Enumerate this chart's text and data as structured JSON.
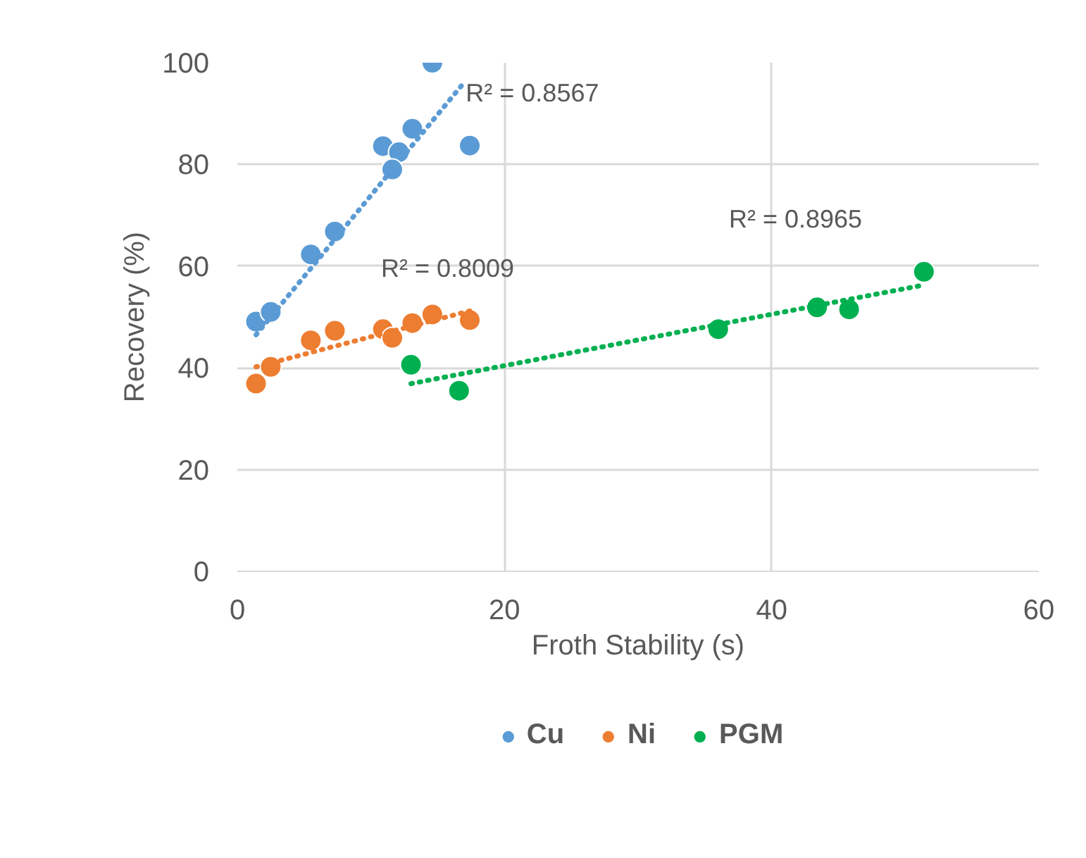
{
  "chart_data": {
    "type": "scatter",
    "xlabel": "Froth Stability (s)",
    "ylabel": "Recovery (%)",
    "xlim": [
      0,
      60
    ],
    "ylim": [
      0,
      100
    ],
    "xticks": [
      0,
      20,
      40,
      60
    ],
    "yticks": [
      0,
      20,
      40,
      60,
      80,
      100
    ],
    "grid": true,
    "legend": "bottom",
    "marker": "circle",
    "series": [
      {
        "name": "Cu",
        "color": "#5b9bd5",
        "x": [
          1.4,
          2.5,
          5.5,
          7.3,
          10.9,
          12.1,
          11.6,
          13.1,
          14.6,
          17.4
        ],
        "values": [
          49.1,
          51.0,
          62.3,
          66.8,
          83.6,
          82.4,
          79.0,
          87.0,
          100,
          83.7
        ]
      },
      {
        "name": "Ni",
        "color": "#ed7d31",
        "x": [
          1.4,
          2.5,
          5.5,
          7.3,
          10.9,
          11.6,
          13.1,
          14.6,
          17.4
        ],
        "values": [
          36.9,
          40.2,
          45.4,
          47.3,
          47.6,
          45.9,
          48.8,
          50.5,
          49.4
        ]
      },
      {
        "name": "PGM",
        "color": "#00b050",
        "x": [
          13.0,
          16.6,
          36.0,
          43.4,
          45.8,
          51.4
        ],
        "values": [
          40.6,
          35.5,
          47.6,
          51.9,
          51.5,
          58.9
        ]
      },
      {
        "color": "#5b9bd5",
        "type": "line",
        "line_style": "dotted",
        "marker": "none",
        "x": [
          1.4,
          17.1
        ],
        "values": [
          46.5,
          96.5
        ]
      },
      {
        "color": "#ed7d31",
        "type": "line",
        "line_style": "dotted",
        "marker": "none",
        "x": [
          1.4,
          17.4
        ],
        "values": [
          40.2,
          51.2
        ]
      },
      {
        "color": "#00b050",
        "type": "line",
        "line_style": "dotted",
        "marker": "none",
        "x": [
          13.0,
          51.4
        ],
        "values": [
          36.9,
          56.3
        ]
      }
    ],
    "annotations": [
      {
        "text": "R² = 0.8567",
        "x": 17.1,
        "y": 94
      },
      "R² = 0.8009",
      "R² = 0.8965"
    ]
  }
}
